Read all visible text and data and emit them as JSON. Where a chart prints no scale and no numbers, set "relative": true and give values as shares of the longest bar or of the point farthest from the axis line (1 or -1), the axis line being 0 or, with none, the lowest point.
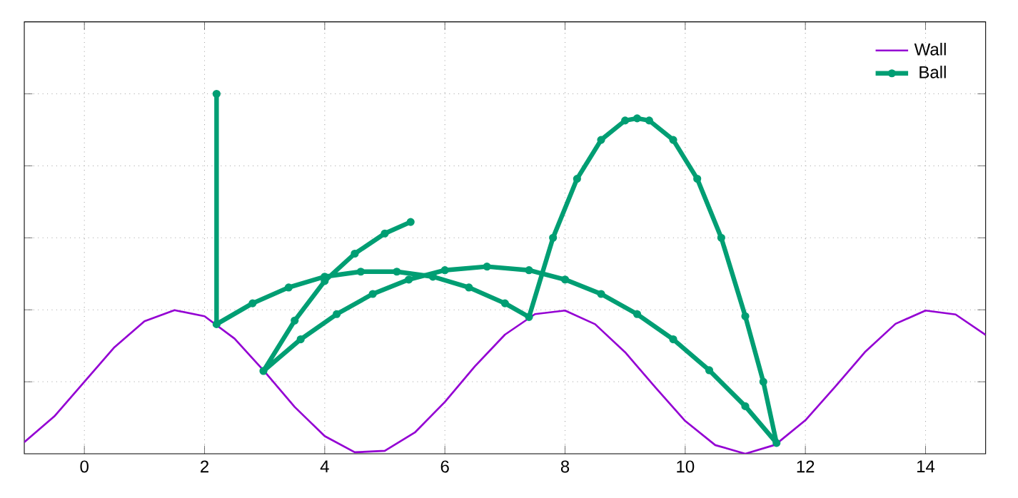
{
  "chart_data": {
    "type": "line",
    "relative": true,
    "xlim": [
      -1,
      15
    ],
    "xticks": [
      0,
      2,
      4,
      6,
      8,
      10,
      12,
      14
    ],
    "grid": true,
    "legend": "top right",
    "tick_labels": "x",
    "series": [
      {
        "name": "Wall",
        "color": "#9400d3",
        "marker": "none",
        "x": [
          -1,
          -0.5,
          0,
          0.5,
          1,
          1.5,
          2,
          2.5,
          3,
          3.5,
          4,
          4.5,
          5,
          5.5,
          6,
          6.5,
          7,
          7.5,
          8,
          8.5,
          9,
          9.5,
          10,
          10.5,
          11,
          11.5,
          12,
          12.5,
          13,
          13.5,
          14,
          14.5,
          15
        ],
        "values": [
          0.032,
          0.104,
          0.2,
          0.296,
          0.368,
          0.399,
          0.382,
          0.32,
          0.228,
          0.13,
          0.049,
          0.004,
          0.008,
          0.059,
          0.144,
          0.243,
          0.331,
          0.388,
          0.398,
          0.36,
          0.282,
          0.185,
          0.091,
          0.024,
          0.0,
          0.025,
          0.093,
          0.187,
          0.284,
          0.361,
          0.398,
          0.387,
          0.33
        ]
      },
      {
        "name": "Ball",
        "color": "#009e73",
        "marker": "circle",
        "x": [
          2.2,
          2.2,
          2.8,
          3.4,
          4.0,
          4.6,
          5.2,
          5.8,
          6.4,
          7.0,
          7.4,
          7.8,
          8.2,
          8.6,
          9.0,
          9.2,
          9.4,
          9.8,
          10.2,
          10.6,
          11.0,
          11.3,
          11.52,
          11.0,
          10.4,
          9.8,
          9.2,
          8.6,
          8.0,
          7.4,
          6.7,
          6.0,
          5.4,
          4.8,
          4.2,
          3.6,
          2.98,
          3.5,
          4.0,
          4.5,
          5.0,
          5.43
        ],
        "values": [
          1.0,
          0.36,
          0.418,
          0.462,
          0.492,
          0.506,
          0.506,
          0.492,
          0.462,
          0.418,
          0.38,
          0.6,
          0.764,
          0.872,
          0.926,
          0.932,
          0.926,
          0.872,
          0.764,
          0.6,
          0.382,
          0.2,
          0.03,
          0.132,
          0.232,
          0.318,
          0.388,
          0.444,
          0.484,
          0.51,
          0.52,
          0.51,
          0.484,
          0.444,
          0.388,
          0.318,
          0.23,
          0.37,
          0.48,
          0.556,
          0.612,
          0.644
        ]
      }
    ]
  }
}
